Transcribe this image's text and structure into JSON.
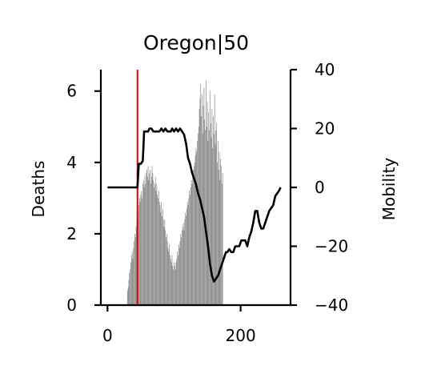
{
  "chart_data": {
    "type": "bar",
    "title": "Oregon|50",
    "ylabel": "Deaths",
    "y2label": "Mobility",
    "xlim": [
      -10,
      275
    ],
    "ylim": [
      0,
      6.6
    ],
    "y2lim": [
      -40,
      40
    ],
    "xticks": [
      0,
      200
    ],
    "yticks": [
      0,
      2,
      4,
      6
    ],
    "y2ticks": [
      -40,
      -20,
      0,
      20,
      40
    ],
    "grid": false,
    "colors": {
      "bars": "#808080",
      "mobility_line": "#000000",
      "marker_line": "#e00000"
    },
    "vertical_marker_x": 45,
    "series": [
      {
        "type": "bar",
        "axis": "left",
        "x_start": 0,
        "values": [
          0,
          0,
          0,
          0,
          0,
          0,
          0,
          0,
          0,
          0,
          0,
          0,
          0,
          0,
          0,
          0,
          0,
          0,
          0,
          0,
          0,
          0,
          0,
          0,
          0,
          0,
          0,
          0,
          0,
          0,
          0.4,
          0.5,
          0.7,
          0.9,
          1.0,
          1.2,
          1.4,
          1.5,
          1.3,
          1.6,
          1.8,
          2.0,
          1.9,
          2.2,
          2.4,
          2.5,
          2.6,
          2.8,
          3.0,
          2.9,
          3.1,
          3.2,
          3.0,
          3.4,
          3.5,
          3.3,
          3.6,
          3.4,
          3.7,
          3.8,
          3.6,
          3.9,
          3.5,
          3.7,
          3.8,
          3.4,
          3.6,
          3.9,
          3.7,
          3.5,
          3.3,
          3.4,
          3.6,
          3.2,
          3.4,
          3.1,
          3.0,
          3.2,
          2.9,
          2.8,
          2.6,
          2.9,
          2.5,
          2.7,
          2.4,
          2.2,
          2.4,
          2.1,
          1.9,
          2.0,
          1.8,
          1.6,
          1.5,
          1.7,
          1.4,
          1.3,
          1.2,
          1.4,
          1.1,
          1.0,
          1.2,
          1.1,
          1.0,
          1.2,
          1.3,
          1.5,
          1.4,
          1.7,
          1.6,
          1.8,
          2.0,
          1.9,
          2.1,
          2.2,
          2.3,
          2.1,
          2.4,
          2.6,
          2.5,
          2.7,
          2.9,
          2.8,
          3.0,
          3.2,
          3.1,
          3.3,
          3.5,
          3.4,
          3.6,
          3.8,
          3.9,
          4.0,
          4.2,
          4.4,
          4.3,
          4.6,
          4.8,
          5.0,
          5.5,
          5.8,
          6.2,
          5.3,
          5.9,
          4.8,
          5.6,
          6.1,
          5.2,
          4.9,
          6.3,
          5.0,
          5.7,
          4.6,
          5.4,
          4.9,
          6.0,
          5.1,
          4.7,
          5.5,
          4.4,
          5.3,
          4.8,
          5.9,
          4.5,
          4.9,
          5.1,
          4.0,
          4.6,
          3.8,
          4.3,
          3.5,
          4.1,
          3.9,
          3.4,
          3.7,
          0,
          0,
          0,
          0,
          0,
          0,
          0,
          0,
          0,
          0,
          0,
          0,
          0,
          0,
          0,
          0,
          0,
          0,
          0,
          0,
          0,
          0,
          0,
          0,
          0,
          0,
          0,
          0,
          0,
          0,
          0,
          0,
          0,
          0,
          0,
          0,
          0,
          0,
          0,
          0,
          0,
          0,
          0,
          0,
          0,
          0,
          0,
          0,
          0,
          0,
          0,
          0,
          0,
          0,
          0,
          0,
          0,
          0,
          0
        ]
      },
      {
        "type": "line",
        "axis": "right",
        "name": "",
        "x": [
          0,
          45,
          47,
          50,
          53,
          55,
          58,
          61,
          63,
          66,
          69,
          72,
          75,
          78,
          81,
          84,
          87,
          90,
          93,
          95,
          97,
          100,
          103,
          106,
          109,
          112,
          115,
          118,
          121,
          124,
          127,
          130,
          133,
          136,
          139,
          142,
          145,
          148,
          151,
          154,
          157,
          160,
          163,
          166,
          169,
          172,
          175,
          178,
          180,
          183,
          186,
          189,
          192,
          195,
          198,
          201,
          204,
          207,
          210,
          213,
          216,
          219,
          222,
          225,
          228,
          231,
          234,
          237,
          240,
          243,
          246,
          249,
          252,
          255,
          258,
          260
        ],
        "values": [
          0,
          0,
          8,
          8,
          9,
          19,
          19,
          19,
          20,
          20,
          19,
          19,
          19,
          19,
          20,
          19,
          20,
          19,
          19,
          19,
          20,
          19,
          20,
          19,
          20,
          19,
          18,
          15,
          10,
          8,
          5,
          3,
          1,
          -2,
          -4,
          -7,
          -10,
          -15,
          -20,
          -26,
          -30,
          -32,
          -31,
          -30,
          -28,
          -26,
          -24,
          -22,
          -22,
          -21,
          -22,
          -22,
          -20,
          -20,
          -20,
          -18,
          -18,
          -18,
          -20,
          -17,
          -15,
          -12,
          -8,
          -8,
          -12,
          -14,
          -14,
          -12,
          -10,
          -8,
          -7,
          -6,
          -3,
          -2,
          -1,
          0
        ]
      }
    ]
  }
}
